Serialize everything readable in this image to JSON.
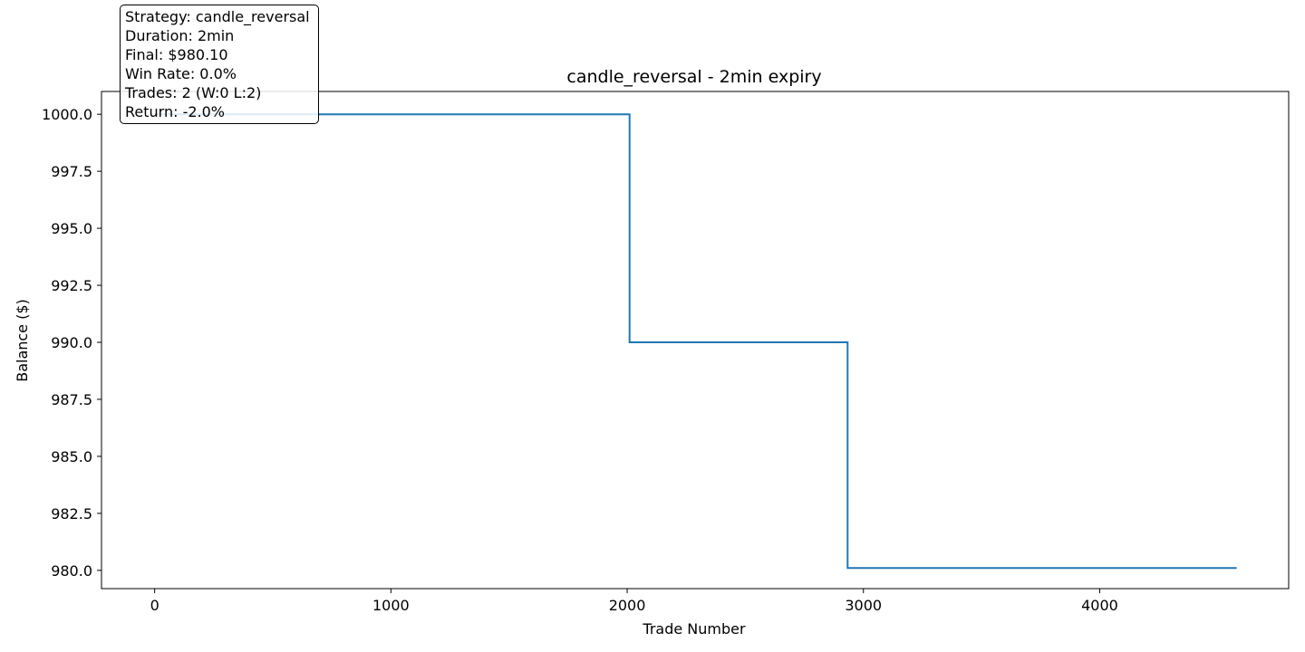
{
  "chart_data": {
    "type": "line",
    "title": "candle_reversal - 2min expiry",
    "xlabel": "Trade Number",
    "ylabel": "Balance ($)",
    "xlim": [
      -225,
      4800
    ],
    "ylim": [
      979.2,
      1001.0
    ],
    "xticks": [
      0,
      1000,
      2000,
      3000,
      4000
    ],
    "yticks": [
      980.0,
      982.5,
      985.0,
      987.5,
      990.0,
      992.5,
      995.0,
      997.5,
      1000.0
    ],
    "ytick_labels": [
      "980.0",
      "982.5",
      "985.0",
      "987.5",
      "990.0",
      "992.5",
      "995.0",
      "997.5",
      "1000.0"
    ],
    "line_color": "#1f77b4",
    "series": [
      {
        "x": [
          0,
          2010,
          2010,
          2933,
          2933,
          4580
        ],
        "y": [
          1000.0,
          1000.0,
          990.0,
          990.0,
          980.1,
          980.1
        ]
      }
    ],
    "grid": false
  },
  "info_box": {
    "lines": [
      "Strategy: candle_reversal",
      "Duration: 2min",
      "Final: $980.10",
      "Win Rate: 0.0%",
      "Trades: 2 (W:0 L:2)",
      "Return: -2.0%"
    ]
  }
}
